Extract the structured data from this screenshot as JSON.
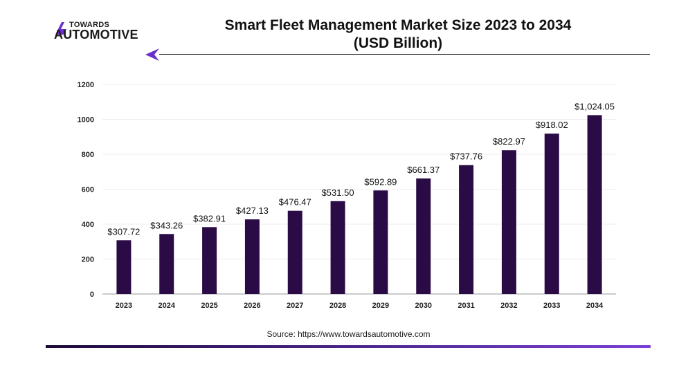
{
  "brand": {
    "logo_top": "TOWARDS",
    "logo_bottom": "AUTOMOTIVE",
    "accent_color": "#6a2fc9"
  },
  "header": {
    "title_line1": "Smart Fleet Management Market Size 2023 to 2034",
    "title_line2": "(USD Billion)"
  },
  "source": "Source: https://www.towardsautomotive.com",
  "chart_data": {
    "type": "bar",
    "title": "Smart Fleet Management Market Size 2023 to 2034 (USD Billion)",
    "xlabel": "",
    "ylabel": "",
    "categories": [
      "2023",
      "2024",
      "2025",
      "2026",
      "2027",
      "2028",
      "2029",
      "2030",
      "2031",
      "2032",
      "2033",
      "2034"
    ],
    "values": [
      307.72,
      343.26,
      382.91,
      427.13,
      476.47,
      531.5,
      592.89,
      661.37,
      737.76,
      822.97,
      918.02,
      1024.05
    ],
    "labels": [
      "$307.72",
      "$343.26",
      "$382.91",
      "$427.13",
      "$476.47",
      "$531.50",
      "$592.89",
      "$661.37",
      "$737.76",
      "$822.97",
      "$918.02",
      "$1,024.05"
    ],
    "yticks": [
      0,
      200,
      400,
      600,
      800,
      1000,
      1200
    ],
    "ylim": [
      0,
      1200
    ],
    "bar_color": "#2a0b45",
    "grid": true
  }
}
